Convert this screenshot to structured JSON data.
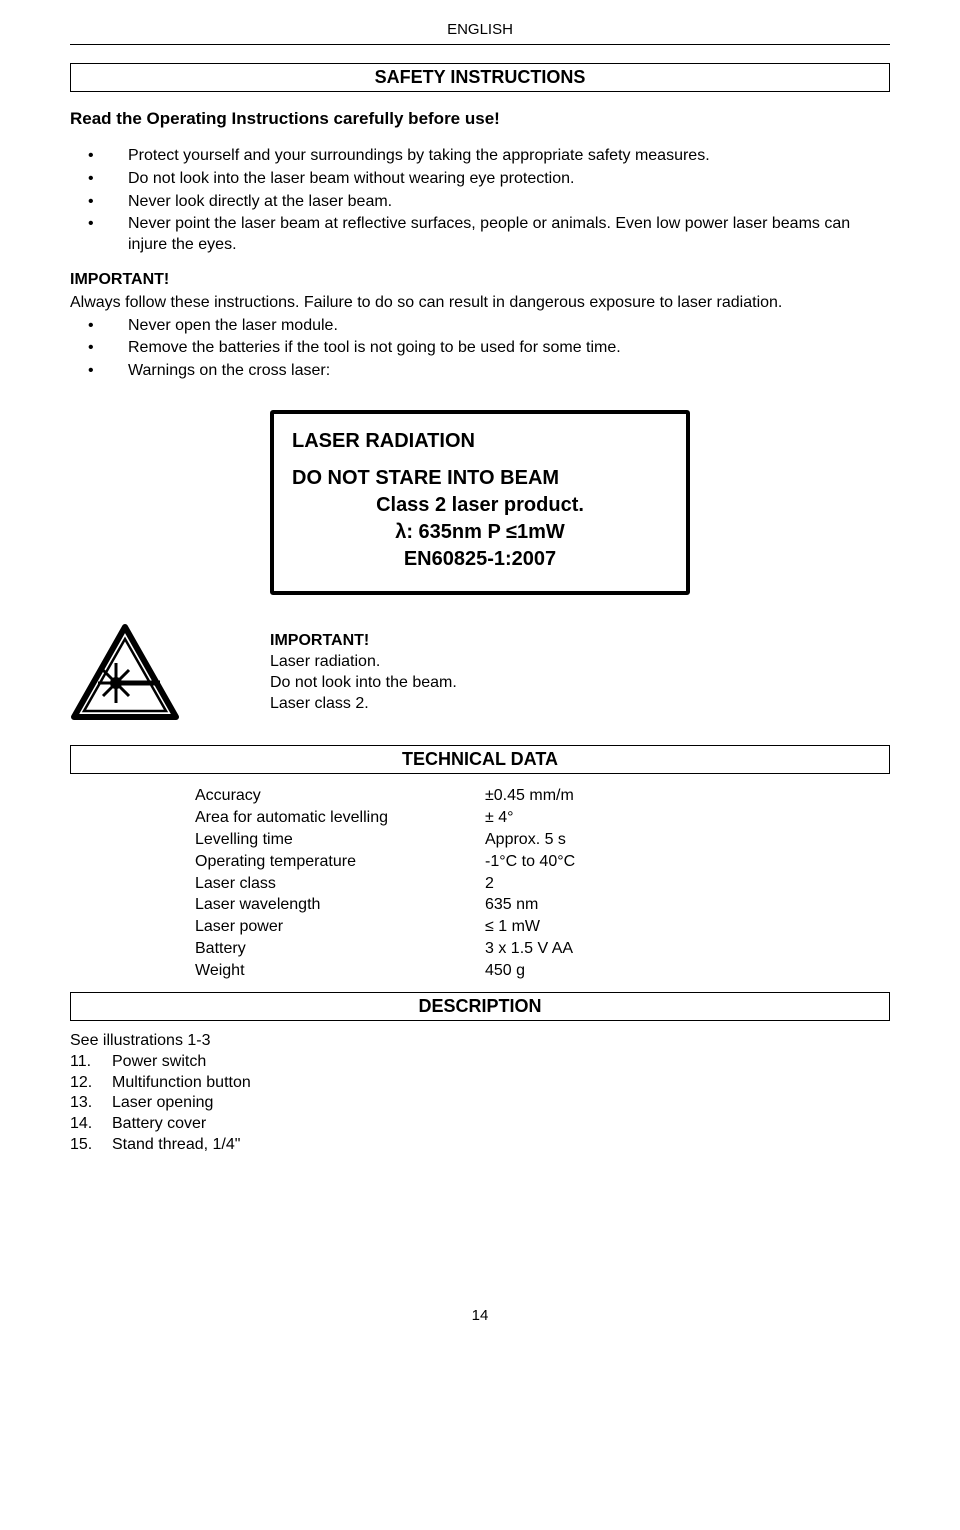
{
  "page": {
    "language": "ENGLISH",
    "pageNumber": "14"
  },
  "sections": {
    "safety": "SAFETY INSTRUCTIONS",
    "technical": "TECHNICAL DATA",
    "description": "DESCRIPTION"
  },
  "lead": "Read the Operating Instructions carefully before use!",
  "bullets1": [
    "Protect yourself and your surroundings by taking the appropriate safety measures.",
    "Do not look into the laser beam without wearing eye protection.",
    "Never look directly at the laser beam.",
    "Never point the laser beam at reflective surfaces, people or animals. Even low power laser beams can injure the eyes."
  ],
  "important": {
    "label": "IMPORTANT!",
    "line": "Always follow these instructions. Failure to do so can result in dangerous exposure to laser radiation."
  },
  "bullets2": [
    "Never open the laser module.",
    "Remove the batteries if the tool is not going to be used for some time.",
    "Warnings on the cross laser:"
  ],
  "laserLabel": {
    "title": "LASER RADIATION",
    "lines": [
      "DO NOT STARE INTO BEAM",
      "Class 2 laser product.",
      "λ: 635nm P ≤1mW",
      "EN60825-1:2007"
    ]
  },
  "iconBlock": {
    "l1": "IMPORTANT!",
    "l2": "Laser radiation.",
    "l3": "Do not look into the beam.",
    "l4": "Laser class 2."
  },
  "techData": {
    "rows": [
      {
        "label": "Accuracy",
        "value": "±0.45 mm/m"
      },
      {
        "label": "Area for automatic levelling",
        "value": "± 4°"
      },
      {
        "label": "Levelling time",
        "value": "Approx. 5 s"
      },
      {
        "label": "Operating temperature",
        "value": "-1°C to 40°C"
      },
      {
        "label": "Laser class",
        "value": "2"
      },
      {
        "label": "Laser wavelength",
        "value": "635 nm"
      },
      {
        "label": "Laser power",
        "value": "≤ 1 mW"
      },
      {
        "label": "Battery",
        "value": "3 x 1.5 V AA"
      },
      {
        "label": "Weight",
        "value": "450 g"
      }
    ]
  },
  "description": {
    "intro": "See illustrations 1-3",
    "items": [
      {
        "num": "11.",
        "label": "Power switch"
      },
      {
        "num": "12.",
        "label": "Multifunction button"
      },
      {
        "num": "13.",
        "label": "Laser opening"
      },
      {
        "num": "14.",
        "label": "Battery cover"
      },
      {
        "num": "15.",
        "label": "Stand thread, 1/4\""
      }
    ]
  },
  "style": {
    "borderColor": "#000000",
    "backgroundColor": "#ffffff",
    "textColor": "#000000",
    "boxBorderWidth": 4
  }
}
